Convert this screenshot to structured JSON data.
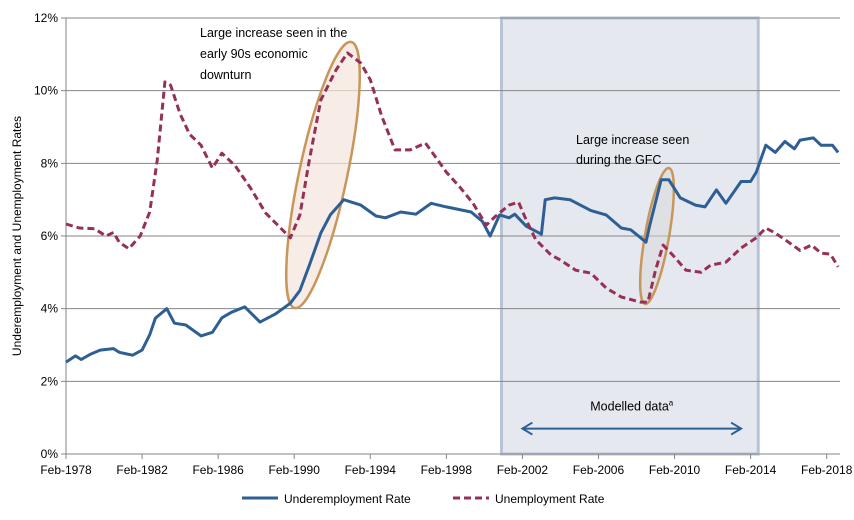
{
  "chart_data": {
    "type": "line",
    "title": "",
    "xlabel": "",
    "ylabel": "Underemployment and Unemployment Rates",
    "xlim": [
      1978.1,
      2018.8
    ],
    "ylim": [
      0,
      12
    ],
    "grid": true,
    "legend_position": "bottom",
    "x_tick_labels": [
      "Feb-1978",
      "Feb-1982",
      "Feb-1986",
      "Feb-1990",
      "Feb-1994",
      "Feb-1998",
      "Feb-2002",
      "Feb-2006",
      "Feb-2010",
      "Feb-2014",
      "Feb-2018"
    ],
    "x_tick_values": [
      1978.1,
      1982.1,
      1986.1,
      1990.1,
      1994.1,
      1998.1,
      2002.1,
      2006.1,
      2010.1,
      2014.1,
      2018.1
    ],
    "y_tick_labels": [
      "0%",
      "2%",
      "4%",
      "6%",
      "8%",
      "10%",
      "12%"
    ],
    "y_tick_values": [
      0,
      2,
      4,
      6,
      8,
      10,
      12
    ],
    "series": [
      {
        "name": "Underemployment Rate",
        "color": "#2e5f94",
        "style": "solid",
        "x": [
          1978.1,
          1978.6,
          1978.9,
          1979.4,
          1979.9,
          1980.6,
          1980.9,
          1981.6,
          1982.1,
          1982.5,
          1982.8,
          1983.4,
          1983.8,
          1984.4,
          1985.2,
          1985.8,
          1986.3,
          1986.8,
          1987.5,
          1988.3,
          1989.1,
          1989.9,
          1990.4,
          1990.9,
          1991.5,
          1992.0,
          1992.7,
          1993.6,
          1994.4,
          1994.9,
          1995.7,
          1996.5,
          1997.3,
          1998.1,
          1999.4,
          2000.0,
          2000.4,
          2000.9,
          2001.4,
          2001.7,
          2002.3,
          2003.1,
          2003.3,
          2003.8,
          2004.6,
          2005.7,
          2006.5,
          2007.3,
          2007.8,
          2008.6,
          2008.8,
          2009.4,
          2009.8,
          2010.4,
          2011.2,
          2011.7,
          2012.3,
          2012.8,
          2013.6,
          2014.1,
          2014.4,
          2014.9,
          2015.4,
          2015.9,
          2016.4,
          2016.7,
          2017.4,
          2017.8,
          2018.4,
          2018.7
        ],
        "y": [
          2.53,
          2.7,
          2.6,
          2.75,
          2.86,
          2.9,
          2.8,
          2.72,
          2.86,
          3.28,
          3.74,
          4.0,
          3.6,
          3.55,
          3.25,
          3.35,
          3.75,
          3.9,
          4.05,
          3.63,
          3.85,
          4.15,
          4.5,
          5.2,
          6.08,
          6.58,
          7.0,
          6.85,
          6.55,
          6.5,
          6.66,
          6.6,
          6.9,
          6.8,
          6.66,
          6.4,
          6.0,
          6.58,
          6.5,
          6.6,
          6.27,
          6.05,
          7.0,
          7.05,
          7.0,
          6.7,
          6.58,
          6.22,
          6.17,
          5.83,
          6.3,
          7.55,
          7.55,
          7.05,
          6.85,
          6.8,
          7.27,
          6.9,
          7.5,
          7.5,
          7.76,
          8.5,
          8.3,
          8.6,
          8.4,
          8.64,
          8.7,
          8.5,
          8.5,
          8.3
        ]
      },
      {
        "name": "Unemployment Rate",
        "color": "#953059",
        "style": "dashed",
        "x": [
          1978.1,
          1978.8,
          1979.6,
          1980.2,
          1980.6,
          1980.9,
          1981.4,
          1982.0,
          1982.5,
          1982.9,
          1983.3,
          1983.6,
          1984.1,
          1984.6,
          1985.2,
          1985.8,
          1986.3,
          1987.0,
          1987.8,
          1988.6,
          1989.9,
          1990.4,
          1990.9,
          1991.5,
          1992.3,
          1992.9,
          1993.6,
          1994.1,
          1994.7,
          1995.4,
          1996.2,
          1997.0,
          1997.5,
          1998.1,
          1998.8,
          1999.5,
          2000.2,
          2000.7,
          2001.4,
          2001.9,
          2002.3,
          2002.8,
          2003.6,
          2004.1,
          2004.9,
          2005.7,
          2006.5,
          2007.3,
          2008.3,
          2008.7,
          2009.1,
          2009.5,
          2010.0,
          2010.7,
          2011.5,
          2012.0,
          2012.8,
          2013.6,
          2014.4,
          2014.9,
          2015.4,
          2015.9,
          2016.7,
          2017.3,
          2017.8,
          2018.3,
          2018.7
        ],
        "y": [
          6.33,
          6.22,
          6.2,
          6.0,
          6.1,
          5.83,
          5.65,
          6.0,
          6.66,
          8.1,
          10.24,
          10.15,
          9.36,
          8.8,
          8.5,
          7.87,
          8.28,
          7.93,
          7.32,
          6.63,
          5.95,
          6.58,
          8.1,
          9.74,
          10.57,
          11.04,
          10.76,
          10.3,
          9.3,
          8.37,
          8.37,
          8.56,
          8.2,
          7.76,
          7.35,
          6.9,
          6.3,
          6.55,
          6.85,
          6.93,
          6.44,
          5.9,
          5.48,
          5.34,
          5.06,
          4.98,
          4.57,
          4.32,
          4.18,
          4.18,
          5.06,
          5.75,
          5.48,
          5.06,
          5.0,
          5.2,
          5.28,
          5.67,
          5.95,
          6.22,
          6.08,
          5.9,
          5.6,
          5.75,
          5.53,
          5.5,
          5.15
        ]
      }
    ],
    "shaded_region": {
      "x_from": 2001.0,
      "x_to": 2014.5,
      "color": "#e6e8f0",
      "border": "#b8c4d6"
    },
    "arrow": {
      "x_from": 2002.1,
      "x_to": 2013.6,
      "y": 0.7,
      "label": "Modelled data",
      "superscript": "a"
    },
    "annotations": [
      {
        "lines": [
          "Large increase seen in the",
          "early 90s economic",
          "downturn"
        ]
      },
      {
        "lines": [
          "Large increase seen",
          "during the GFC"
        ]
      }
    ]
  }
}
